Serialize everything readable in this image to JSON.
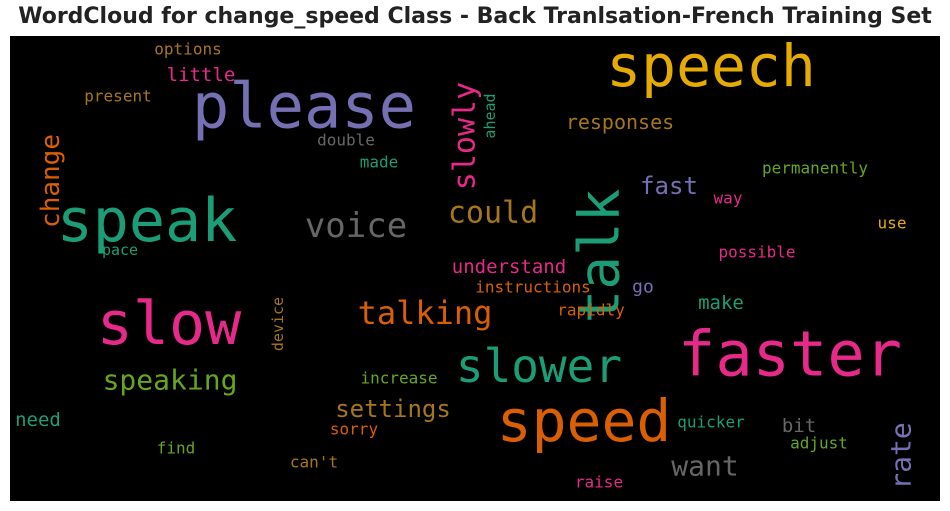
{
  "chart_data": {
    "type": "wordcloud",
    "title": "WordCloud for change_speed Class - Back Tranlsation-French Training Set",
    "background": "#000000",
    "words": [
      {
        "text": "faster",
        "size": 62,
        "color": "#e7298a",
        "rotate": 0
      },
      {
        "text": "please",
        "size": 62,
        "color": "#7570b3",
        "rotate": 0
      },
      {
        "text": "speech",
        "size": 58,
        "color": "#e6ab02",
        "rotate": 0
      },
      {
        "text": "speak",
        "size": 60,
        "color": "#1b9e77",
        "rotate": 0
      },
      {
        "text": "slow",
        "size": 60,
        "color": "#e7298a",
        "rotate": 0
      },
      {
        "text": "speed",
        "size": 58,
        "color": "#d95f02",
        "rotate": 0
      },
      {
        "text": "talk",
        "size": 56,
        "color": "#1b9e77",
        "rotate": -90
      },
      {
        "text": "slower",
        "size": 46,
        "color": "#1b9e77",
        "rotate": 0
      },
      {
        "text": "voice",
        "size": 34,
        "color": "#666666",
        "rotate": 0
      },
      {
        "text": "slowly",
        "size": 30,
        "color": "#e7298a",
        "rotate": -90
      },
      {
        "text": "could",
        "size": 30,
        "color": "#a6761d",
        "rotate": 0
      },
      {
        "text": "talking",
        "size": 32,
        "color": "#d95f02",
        "rotate": 0
      },
      {
        "text": "speaking",
        "size": 28,
        "color": "#66a61e",
        "rotate": 0
      },
      {
        "text": "change",
        "size": 26,
        "color": "#d95f02",
        "rotate": -90
      },
      {
        "text": "want",
        "size": 28,
        "color": "#666666",
        "rotate": 0
      },
      {
        "text": "rate",
        "size": 28,
        "color": "#7570b3",
        "rotate": -90
      },
      {
        "text": "settings",
        "size": 24,
        "color": "#a6761d",
        "rotate": 0
      },
      {
        "text": "fast",
        "size": 24,
        "color": "#7570b3",
        "rotate": 0
      },
      {
        "text": "responses",
        "size": 20,
        "color": "#a6761d",
        "rotate": 0
      },
      {
        "text": "understand",
        "size": 19,
        "color": "#e7298a",
        "rotate": 0
      },
      {
        "text": "little",
        "size": 19,
        "color": "#e7298a",
        "rotate": 0
      },
      {
        "text": "make",
        "size": 19,
        "color": "#1b9e77",
        "rotate": 0
      },
      {
        "text": "need",
        "size": 19,
        "color": "#1b9e77",
        "rotate": 0
      },
      {
        "text": "bit",
        "size": 19,
        "color": "#666666",
        "rotate": 0
      },
      {
        "text": "go",
        "size": 18,
        "color": "#7570b3",
        "rotate": 0
      },
      {
        "text": "permanently",
        "size": 16,
        "color": "#66a61e",
        "rotate": 0
      },
      {
        "text": "double",
        "size": 16,
        "color": "#666666",
        "rotate": 0
      },
      {
        "text": "options",
        "size": 16,
        "color": "#a6761d",
        "rotate": 0
      },
      {
        "text": "present",
        "size": 16,
        "color": "#a6761d",
        "rotate": 0
      },
      {
        "text": "instructions",
        "size": 16,
        "color": "#d95f02",
        "rotate": 0
      },
      {
        "text": "rapidly",
        "size": 16,
        "color": "#d95f02",
        "rotate": 0
      },
      {
        "text": "increase",
        "size": 16,
        "color": "#66a61e",
        "rotate": 0
      },
      {
        "text": "quicker",
        "size": 16,
        "color": "#1b9e77",
        "rotate": 0
      },
      {
        "text": "adjust",
        "size": 16,
        "color": "#66a61e",
        "rotate": 0
      },
      {
        "text": "sorry",
        "size": 16,
        "color": "#d95f02",
        "rotate": 0
      },
      {
        "text": "find",
        "size": 16,
        "color": "#66a61e",
        "rotate": 0
      },
      {
        "text": "can't",
        "size": 16,
        "color": "#a6761d",
        "rotate": 0
      },
      {
        "text": "raise",
        "size": 16,
        "color": "#e7298a",
        "rotate": 0
      },
      {
        "text": "possible",
        "size": 16,
        "color": "#e7298a",
        "rotate": 0
      },
      {
        "text": "use",
        "size": 16,
        "color": "#e6ab02",
        "rotate": 0
      },
      {
        "text": "way",
        "size": 16,
        "color": "#e7298a",
        "rotate": 0
      },
      {
        "text": "made",
        "size": 16,
        "color": "#1b9e77",
        "rotate": 0
      },
      {
        "text": "pace",
        "size": 15,
        "color": "#1b9e77",
        "rotate": 0
      },
      {
        "text": "ahead",
        "size": 15,
        "color": "#1b9e77",
        "rotate": -90
      },
      {
        "text": "device",
        "size": 15,
        "color": "#a6761d",
        "rotate": -90
      }
    ]
  }
}
